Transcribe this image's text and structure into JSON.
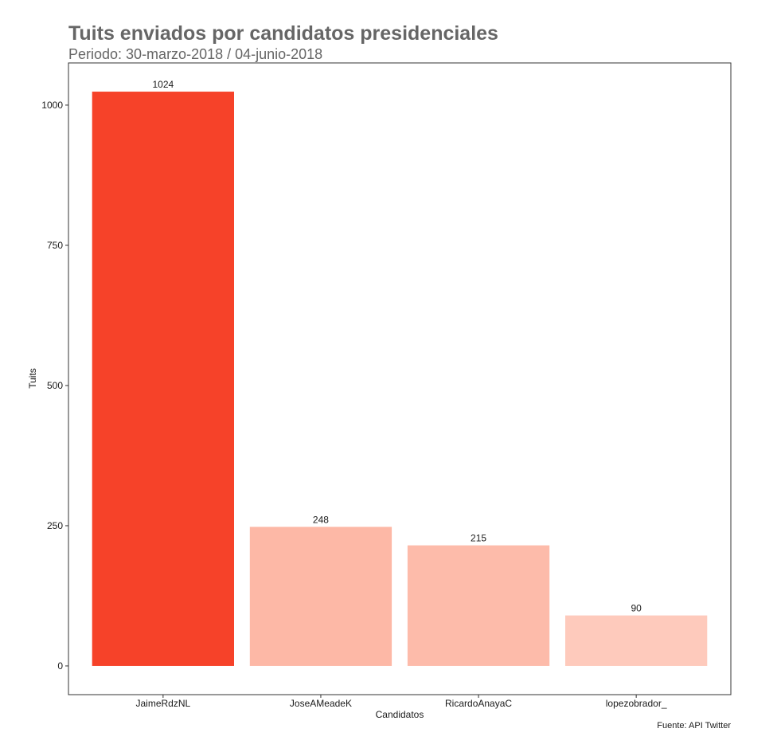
{
  "chart_data": {
    "type": "bar",
    "title": "Tuits enviados por candidatos presidenciales",
    "subtitle": "Periodo: 30-marzo-2018 / 04-junio-2018",
    "xlabel": "Candidatos",
    "ylabel": "Tuits",
    "caption": "Fuente: API Twitter",
    "categories": [
      "JaimeRdzNL",
      "JoseAMeadeK",
      "RicardoAnayaC",
      "lopezobrador_"
    ],
    "values": [
      1024,
      248,
      215,
      90
    ],
    "bar_labels": [
      "1024",
      "248",
      "215",
      "90"
    ],
    "bar_colors": [
      "#f64229",
      "#fdb8a6",
      "#fdbbaa",
      "#fecabc"
    ],
    "yticks": [
      0,
      250,
      500,
      750,
      1000
    ],
    "ytick_labels": [
      "0",
      "250",
      "500",
      "750",
      "1000"
    ],
    "ylim": [
      -51.2,
      1075.2
    ],
    "grid": false,
    "legend": "none"
  }
}
